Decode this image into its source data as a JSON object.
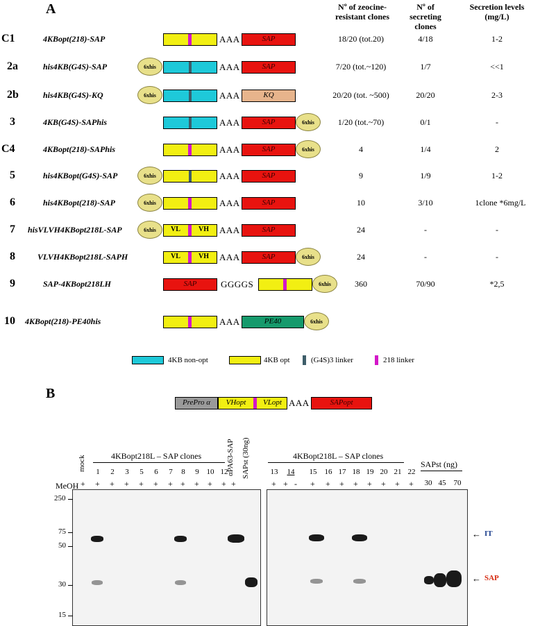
{
  "panel_a": {
    "letter": "A",
    "headers": {
      "zeocine": "Nº of zeocine- resistant clones",
      "secreting": "Nº of secreting clones",
      "levels": "Secretion levels (mg/L)"
    },
    "rows": [
      {
        "id": "C1",
        "name": "4KBopt(218)-SAP",
        "zeocine": "18/20 (tot.20)",
        "secreting": "4/18",
        "levels": "1-2"
      },
      {
        "id": "2a",
        "name": "his4KB(G4S)-SAP",
        "zeocine": "7/20 (tot.~120)",
        "secreting": "1/7",
        "levels": "<<1"
      },
      {
        "id": "2b",
        "name": "his4KB(G4S)-KQ",
        "zeocine": "20/20 (tot. ~500)",
        "secreting": "20/20",
        "levels": "2-3"
      },
      {
        "id": "3",
        "name": "4KB(G4S)-SAPhis",
        "zeocine": "1/20 (tot.~70)",
        "secreting": "0/1",
        "levels": "-"
      },
      {
        "id": "C4",
        "name": "4KBopt(218)-SAPhis",
        "zeocine": "4",
        "secreting": "1/4",
        "levels": "2"
      },
      {
        "id": "5",
        "name": "his4KBopt(G4S)-SAP",
        "zeocine": "9",
        "secreting": "1/9",
        "levels": "1-2"
      },
      {
        "id": "6",
        "name": "his4KBopt(218)-SAP",
        "zeocine": "10",
        "secreting": "3/10",
        "levels": "1clone *6mg/L"
      },
      {
        "id": "7",
        "name": "hisVLVH4KBopt218L-SAP",
        "zeocine": "24",
        "secreting": "-",
        "levels": "-"
      },
      {
        "id": "8",
        "name": "VLVH4KBopt218L-SAPH",
        "zeocine": "24",
        "secreting": "-",
        "levels": "-"
      },
      {
        "id": "9",
        "name": "SAP-4KBopt218LH",
        "zeocine": "360",
        "secreting": "70/90",
        "levels": "*2,5"
      },
      {
        "id": "10",
        "name": "4KBopt(218)-PE40his",
        "zeocine": "",
        "secreting": "",
        "levels": ""
      }
    ],
    "box_labels": {
      "his": "6xhis",
      "aaa": "AAA",
      "sap": "SAP",
      "kq": "KQ",
      "pe40": "PE40",
      "vl": "VL",
      "vh": "VH",
      "gggs": "GGGGS"
    },
    "legend": {
      "nonopt": "4KB non-opt",
      "opt": "4KB opt",
      "g4s": "(G4S)3 linker",
      "l218": "218 linker"
    }
  },
  "panel_b": {
    "letter": "B",
    "construct": {
      "prepro": "PrePro α",
      "vhopt": "VHopt",
      "vlopt": "VLopt",
      "aaa": "AAA",
      "sapopt": "SAPopt"
    },
    "left_group": "4KBopt218L – SAP clones",
    "right_group": "4KBopt218L – SAP clones",
    "meoh": "MeOH",
    "mock": "mock",
    "apa": "αPA63-SAP",
    "sapst": "SAPst (30ng)",
    "sapst_ng": "SAPst (ng)",
    "left_lanes": [
      "1",
      "2",
      "3",
      "5",
      "6",
      "7",
      "8",
      "9",
      "10",
      "12"
    ],
    "right_lanes": [
      "13",
      "14",
      "15",
      "16",
      "17",
      "18",
      "19",
      "20",
      "21",
      "22"
    ],
    "sap_amounts": [
      "30",
      "45",
      "70"
    ],
    "mw": [
      "250",
      "75",
      "50",
      "30",
      "15"
    ],
    "arrow_it": "IT",
    "arrow_sap": "SAP",
    "minus": "-",
    "plus": "+"
  }
}
